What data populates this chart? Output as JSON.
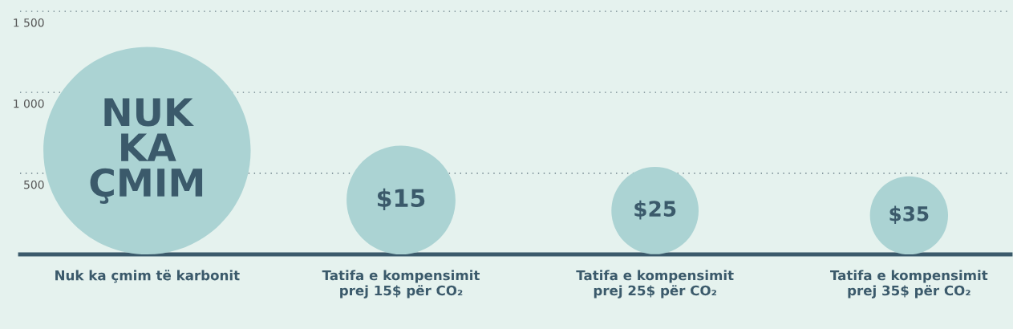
{
  "chart_data": {
    "type": "bubble",
    "categories": [
      "Nuk ka çmim të karbonit",
      "Tatifa e kompensimit\nprej 15$ për CO₂",
      "Tatifa e kompensimit\nprej 25$ për CO₂",
      "Tatifa e kompensimit\nprej 35$ për CO₂"
    ],
    "values": [
      640,
      335,
      270,
      240
    ],
    "sizes": [
      1,
      0.276,
      0.177,
      0.142
    ],
    "annotations": [
      "NUK\nKA\nÇMIM",
      "$15",
      "$25",
      "$35"
    ],
    "color": "#abd3d3",
    "ylim": [
      0,
      1570
    ],
    "yticks": [
      {
        "value": 500,
        "label": "500"
      },
      {
        "value": 1000,
        "label": "1 000"
      },
      {
        "value": 1500,
        "label": "1 500"
      }
    ],
    "grid": "y"
  }
}
